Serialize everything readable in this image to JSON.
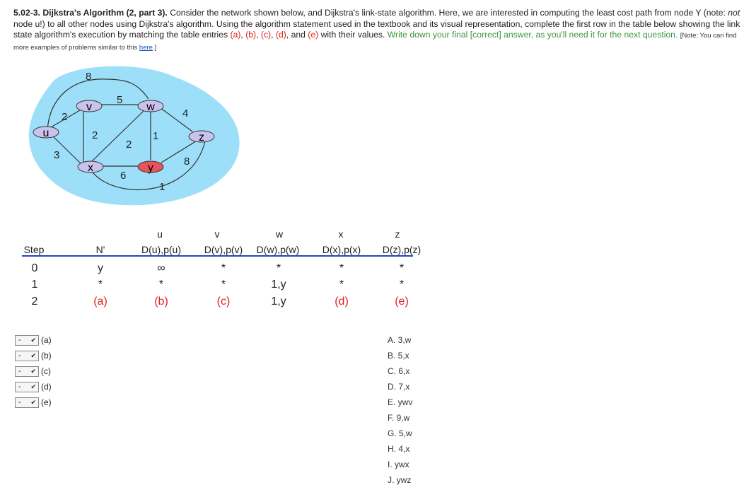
{
  "question": {
    "title": "5.02-3. Dijkstra's Algorithm (2, part 3).",
    "p1": " Consider the network shown below, and Dijkstra's link-state algorithm. Here, we are interested in computing the least cost path from node Y (note: ",
    "not": "not",
    "p2": " node u!) to all other nodes using Dijkstra's algorithm. Using the algorithm statement used in the textbook and its visual representation, complete the first row in the table below showing the link state algorithm's execution by matching the table entries ",
    "labels": [
      "(a)",
      "(b)",
      "(c)",
      "(d)",
      "(e)"
    ],
    "p3": " with their values. ",
    "green": "Write down your final [correct] answer, as you'll need it for the next question.",
    "note": "[Note: You can find more examples of problems similar to this ",
    "link": "here",
    "note_end": ".]"
  },
  "network": {
    "nodes": [
      "u",
      "v",
      "w",
      "x",
      "y",
      "z"
    ],
    "costs": [
      "8",
      "5",
      "2",
      "4",
      "2",
      "2",
      "1",
      "3",
      "6",
      "8",
      "1"
    ]
  },
  "table": {
    "node_header": [
      "u",
      "v",
      "w",
      "x",
      "z"
    ],
    "col_header": [
      "Step",
      "N'",
      "D(u),p(u)",
      "D(v),p(v)",
      "D(w),p(w)",
      "D(x),p(x)",
      "D(z),p(z)"
    ],
    "rows": [
      [
        "0",
        "y",
        "∞",
        "*",
        "*",
        "*",
        "*"
      ],
      [
        "1",
        "*",
        "*",
        "*",
        "1,y",
        "*",
        "*"
      ],
      [
        "2",
        "(a)",
        "(b)",
        "(c)",
        "1,y",
        "(d)",
        "(e)"
      ]
    ]
  },
  "selects": [
    {
      "value": "-",
      "label": "(a)"
    },
    {
      "value": "-",
      "label": "(b)"
    },
    {
      "value": "-",
      "label": "(c)"
    },
    {
      "value": "-",
      "label": "(d)"
    },
    {
      "value": "-",
      "label": "(e)"
    }
  ],
  "options": [
    "A. 3,w",
    "B. 5,x",
    "C. 6,x",
    "D. 7,x",
    "E. ywv",
    "F. 9,w",
    "G. 5,w",
    "H. 4,x",
    "I.  ywx",
    "J.  ywz"
  ],
  "colors": {
    "cloud": "#9ddff8",
    "router": "#c9c2ec",
    "router_y": "#e8545c",
    "accent_red": "#e0201e",
    "accent_green": "#3f9442",
    "rule": "#2842c8"
  }
}
